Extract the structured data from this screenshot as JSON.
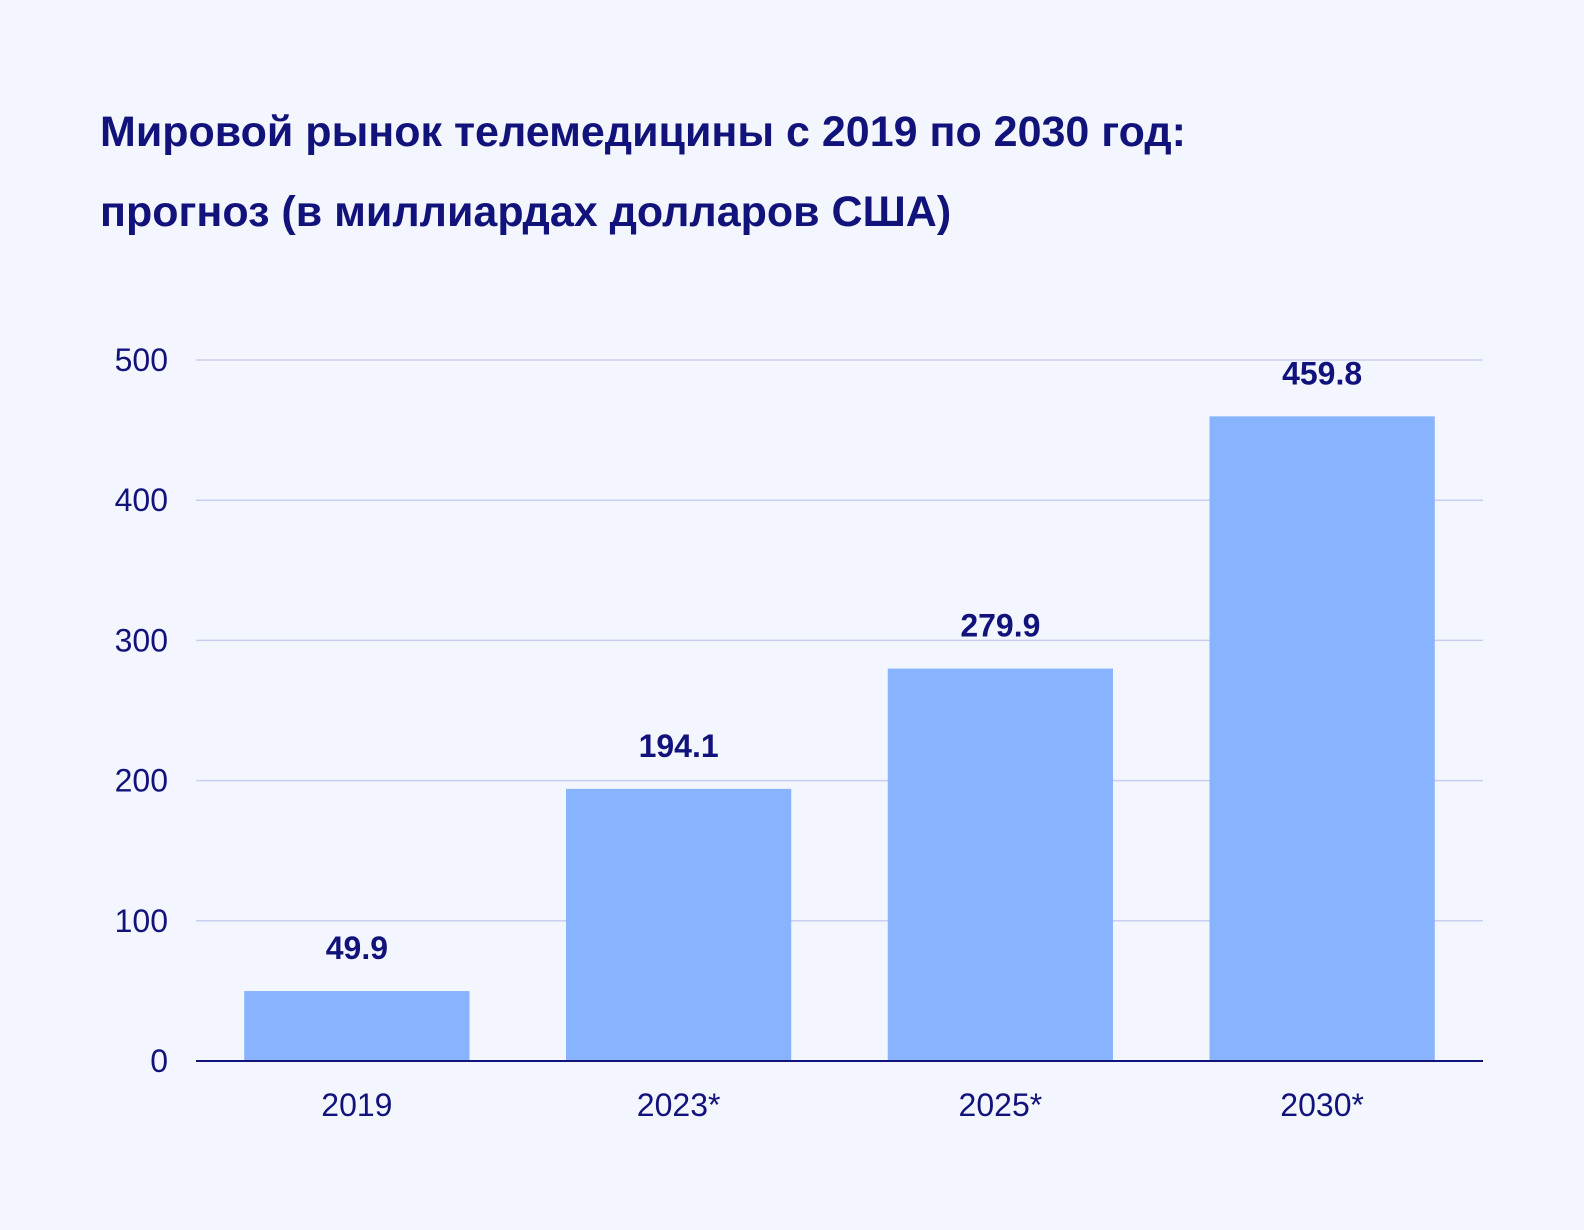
{
  "title": {
    "line1": "Мировой рынок телемедицины с 2019 по 2030 год:",
    "line2": "прогноз (в миллиардах долларов США)"
  },
  "colors": {
    "background": "#f3f6ff",
    "text": "#12137a",
    "bar": "#87b3ff",
    "grid": "#c9cff0"
  },
  "chart_data": {
    "type": "bar",
    "title": "Мировой рынок телемедицины с 2019 по 2030 год: прогноз (в миллиардах долларов США)",
    "xlabel": "",
    "ylabel": "",
    "categories": [
      "2019",
      "2023*",
      "2025*",
      "2030*"
    ],
    "values": [
      49.9,
      194.1,
      279.9,
      459.8
    ],
    "data_labels": [
      "49.9",
      "194.1",
      "279.9",
      "459.8"
    ],
    "ylim": [
      0,
      500
    ],
    "yticks": [
      0,
      100,
      200,
      300,
      400,
      500
    ],
    "ytick_labels": [
      "0",
      "100",
      "200",
      "300",
      "400",
      "500"
    ],
    "grid": true,
    "legend": "none"
  }
}
